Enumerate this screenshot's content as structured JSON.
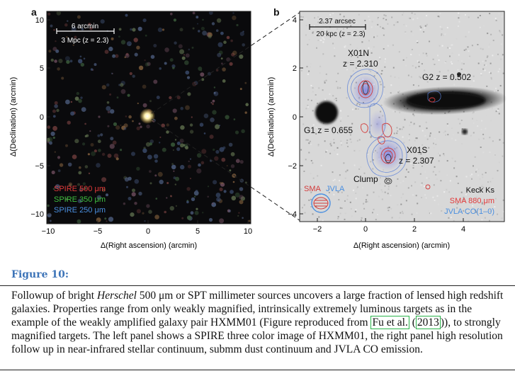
{
  "figure": {
    "panel_a": {
      "letter": "a",
      "scale_top": "6 arcmin",
      "scale_bottom": "3 Mpc (z = 2.3)",
      "legend": [
        {
          "text": "SPIRE 500 μm",
          "color": "#e23a3a"
        },
        {
          "text": "SPIRE 350 μm",
          "color": "#3fbf3f"
        },
        {
          "text": "SPIRE 250 μm",
          "color": "#4a8fe0"
        }
      ],
      "xlabel": "Δ(Right ascension) (arcmin)",
      "ylabel": "Δ(Declination) (arcmin)",
      "xticks": [
        "−10",
        "−5",
        "0",
        "5",
        "10"
      ],
      "yticks": [
        "10",
        "5",
        "0",
        "−5",
        "−10"
      ]
    },
    "panel_b": {
      "letter": "b",
      "scale_top": "2.37 arcsec",
      "scale_bottom": "20 kpc (z = 2.3)",
      "labels": {
        "x01n_name": "X01N",
        "x01n_z": "z = 2.310",
        "g2": "G2 z = 0.502",
        "g1": "G1 z = 0.655",
        "x01s_name": "X01S",
        "x01s_z": "z = 2.307",
        "clump": "Clump",
        "sma_beam": "SMA",
        "jvla_beam": "JVLA"
      },
      "legend": [
        {
          "text": "Keck Ks",
          "color": "#111111"
        },
        {
          "text": "SMA 880 μm",
          "color": "#e23a3a"
        },
        {
          "text": "JVLA CO(1–0)",
          "color": "#4a8fe0"
        }
      ],
      "xlabel": "Δ(Right ascension) (arcmin)",
      "ylabel": "Δ(Declination) (arcmin)",
      "xticks": [
        "−2",
        "0",
        "2",
        "4"
      ],
      "yticks": [
        "4",
        "2",
        "0",
        "−2",
        "−4"
      ]
    }
  },
  "caption": {
    "figure_label": "Figure 10:",
    "seg1": "Followup of bright ",
    "seg_italic": "Herschel",
    "seg2": " 500 μm or SPT millimeter sources uncovers a large fraction of lensed high redshift galaxies. Properties range from only weakly magnified, intrinsically extremely luminous targets as in the example of the weakly amplified galaxy pair HXMM01 (Figure reproduced from ",
    "cite_author": "Fu et al.",
    "seg3": " (",
    "cite_year": "2013",
    "seg4": ")), to strongly magnified targets. The left panel shows a SPIRE three color image of HXMM01, the right panel high resolution follow up in near-infrared stellar continuum, submm dust continuum and JVLA CO emission."
  }
}
